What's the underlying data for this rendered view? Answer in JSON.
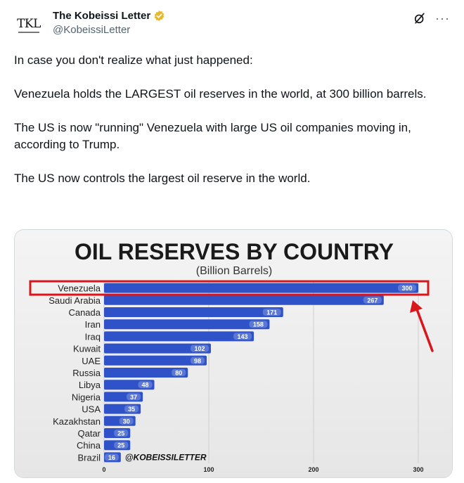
{
  "author": {
    "avatar_text": "TKL",
    "display_name": "The Kobeissi Letter",
    "handle": "@KobeissiLetter"
  },
  "actions": {
    "grok_icon": "grok-icon",
    "more_icon": "more-icon"
  },
  "tweet": {
    "paragraphs": [
      "In case you don't realize what just happened:",
      "Venezuela holds the LARGEST oil reserves in the world, at 300 billion barrels.",
      "The US is now \"running\" Venezuela with large US oil companies moving in, according to Trump.",
      "The US now controls the largest oil reserve in the world."
    ]
  },
  "colors": {
    "bar": "#2f52c9",
    "highlight": "#d9161c",
    "verified": "#e8b828"
  },
  "chart_data": {
    "type": "bar",
    "orientation": "horizontal",
    "title": "OIL RESERVES BY COUNTRY",
    "subtitle": "(Billion Barrels)",
    "watermark": "@KOBEISSILETTER",
    "categories": [
      "Venezuela",
      "Saudi Arabia",
      "Canada",
      "Iran",
      "Iraq",
      "Kuwait",
      "UAE",
      "Russia",
      "Libya",
      "Nigeria",
      "USA",
      "Kazakhstan",
      "Qatar",
      "China",
      "Brazil"
    ],
    "values": [
      300,
      267,
      171,
      158,
      143,
      102,
      98,
      80,
      48,
      37,
      35,
      30,
      25,
      25,
      16
    ],
    "xlim": [
      0,
      300
    ],
    "xticks": [
      "0",
      "100",
      "200",
      "300"
    ],
    "highlighted_category": "Venezuela",
    "grid": true
  }
}
